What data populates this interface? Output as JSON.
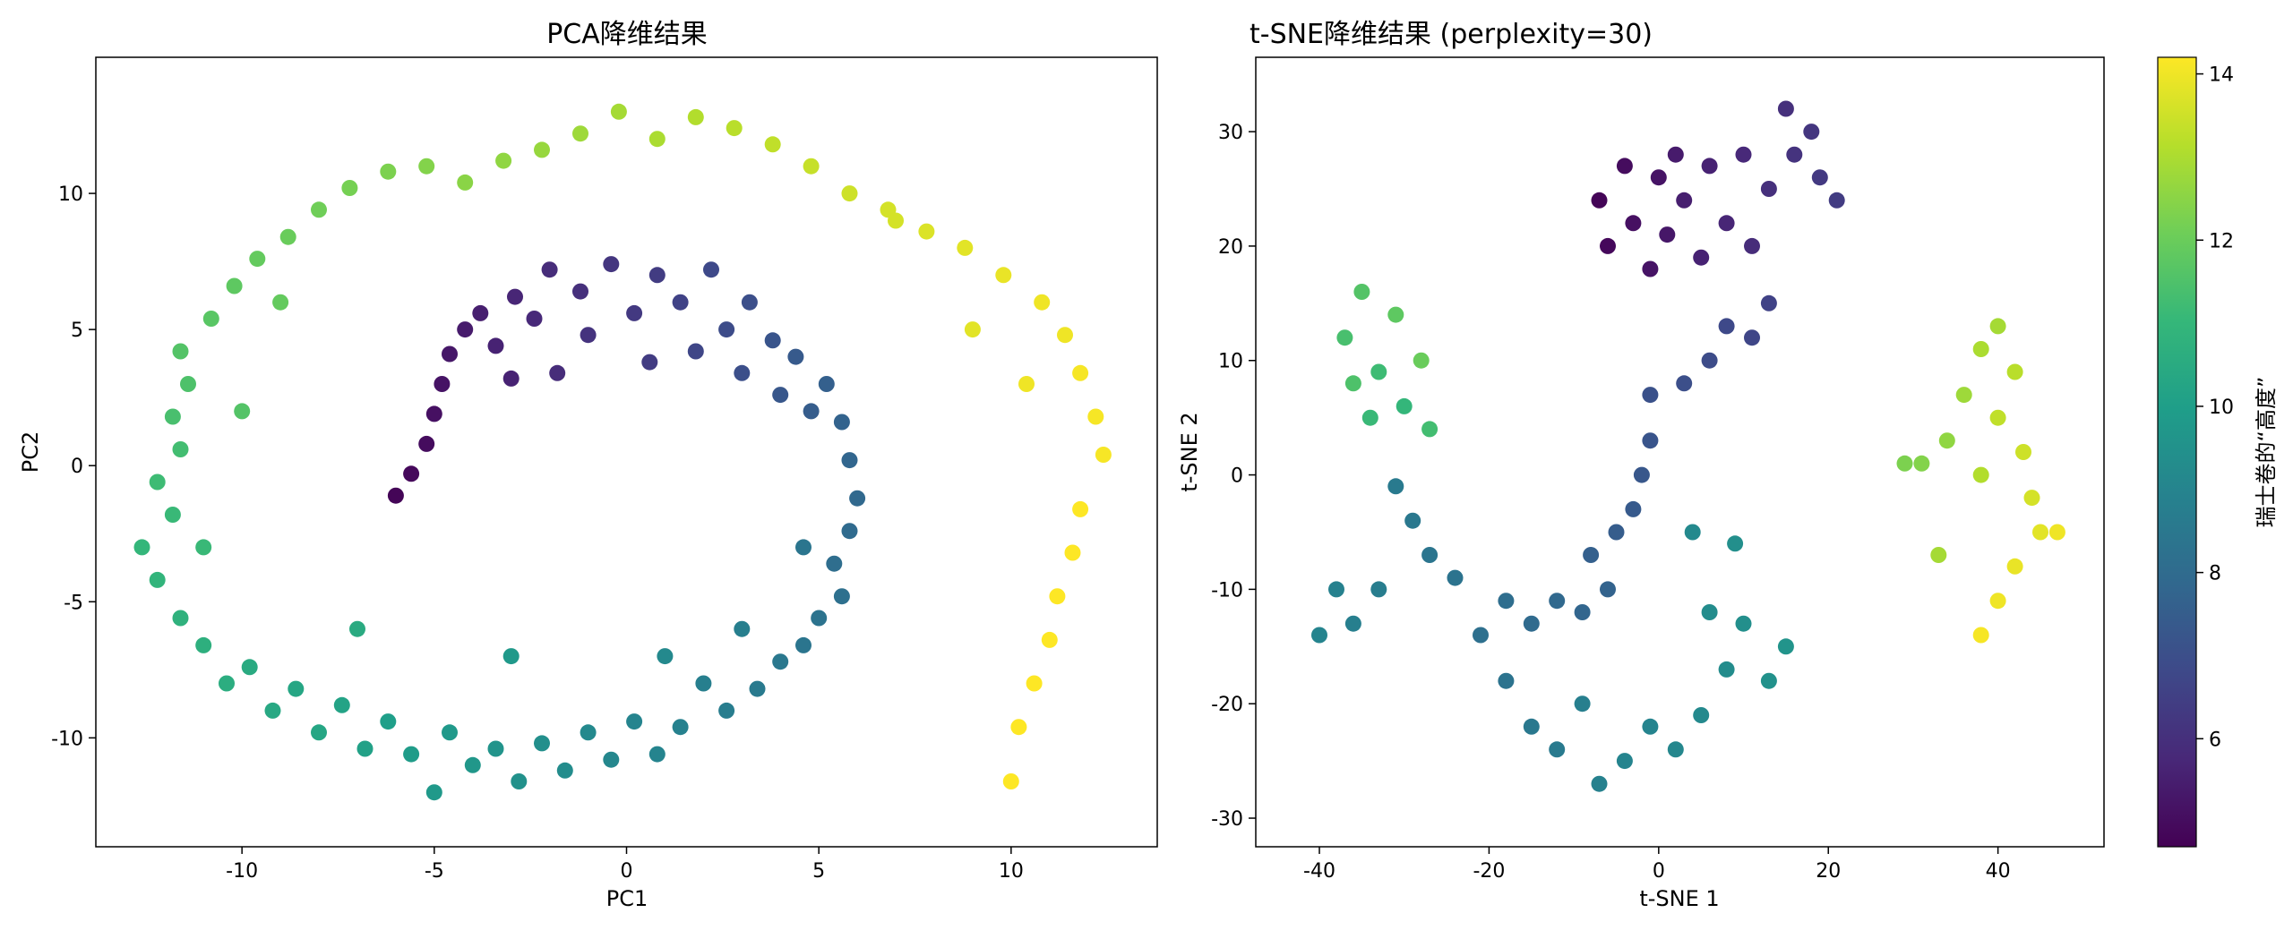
{
  "chart_data": [
    {
      "type": "scatter",
      "title": "PCA降维结果",
      "xlabel": "PC1",
      "ylabel": "PC2",
      "xlim": [
        -13.8,
        13.8
      ],
      "ylim": [
        -14.0,
        15.0
      ],
      "xticks": [
        -10,
        -5,
        0,
        5,
        10
      ],
      "yticks": [
        -10,
        -5,
        0,
        5,
        10
      ],
      "grid": false,
      "color_by": "height",
      "points": [
        [
          -6.0,
          -1.1,
          4.8
        ],
        [
          -5.6,
          -0.3,
          4.9
        ],
        [
          -5.2,
          0.8,
          5.0
        ],
        [
          -5.0,
          1.9,
          5.1
        ],
        [
          -4.8,
          3.0,
          5.2
        ],
        [
          -4.6,
          4.1,
          5.3
        ],
        [
          -4.2,
          5.0,
          5.4
        ],
        [
          -3.8,
          5.6,
          5.5
        ],
        [
          -3.4,
          4.4,
          5.6
        ],
        [
          -3.0,
          3.2,
          5.6
        ],
        [
          -2.9,
          6.2,
          5.7
        ],
        [
          -2.4,
          5.4,
          5.8
        ],
        [
          -2.0,
          7.2,
          5.9
        ],
        [
          -1.8,
          3.4,
          5.9
        ],
        [
          -1.2,
          6.4,
          6.0
        ],
        [
          -1.0,
          4.8,
          6.1
        ],
        [
          -0.4,
          7.4,
          6.2
        ],
        [
          0.2,
          5.6,
          6.3
        ],
        [
          0.6,
          3.8,
          6.4
        ],
        [
          0.8,
          7.0,
          6.4
        ],
        [
          1.4,
          6.0,
          6.6
        ],
        [
          1.8,
          4.2,
          6.7
        ],
        [
          2.2,
          7.2,
          6.8
        ],
        [
          2.6,
          5.0,
          6.9
        ],
        [
          3.0,
          3.4,
          7.0
        ],
        [
          3.2,
          6.0,
          7.0
        ],
        [
          3.8,
          4.6,
          7.2
        ],
        [
          4.0,
          2.6,
          7.3
        ],
        [
          4.4,
          4.0,
          7.4
        ],
        [
          4.8,
          2.0,
          7.5
        ],
        [
          5.2,
          3.0,
          7.6
        ],
        [
          5.6,
          1.6,
          7.7
        ],
        [
          5.8,
          0.2,
          7.8
        ],
        [
          6.0,
          -1.2,
          7.9
        ],
        [
          5.8,
          -2.4,
          8.0
        ],
        [
          5.4,
          -3.6,
          8.1
        ],
        [
          5.6,
          -4.8,
          8.2
        ],
        [
          5.0,
          -5.6,
          8.3
        ],
        [
          4.6,
          -6.6,
          8.4
        ],
        [
          4.0,
          -7.2,
          8.5
        ],
        [
          3.4,
          -8.2,
          8.6
        ],
        [
          2.6,
          -9.0,
          8.7
        ],
        [
          2.0,
          -8.0,
          8.8
        ],
        [
          1.4,
          -9.6,
          8.9
        ],
        [
          0.8,
          -10.6,
          9.0
        ],
        [
          0.2,
          -9.4,
          9.0
        ],
        [
          -0.4,
          -10.8,
          9.1
        ],
        [
          -1.0,
          -9.8,
          9.2
        ],
        [
          -1.6,
          -11.2,
          9.3
        ],
        [
          -2.2,
          -10.2,
          9.4
        ],
        [
          -2.8,
          -11.6,
          9.5
        ],
        [
          -3.4,
          -10.4,
          9.6
        ],
        [
          -4.0,
          -11.0,
          9.7
        ],
        [
          -4.6,
          -9.8,
          9.8
        ],
        [
          -5.0,
          -12.0,
          9.8
        ],
        [
          -5.6,
          -10.6,
          9.9
        ],
        [
          -6.2,
          -9.4,
          10.0
        ],
        [
          -6.8,
          -10.4,
          10.1
        ],
        [
          -7.4,
          -8.8,
          10.2
        ],
        [
          -8.0,
          -9.8,
          10.3
        ],
        [
          -8.6,
          -8.2,
          10.3
        ],
        [
          -9.2,
          -9.0,
          10.4
        ],
        [
          -9.8,
          -7.4,
          10.5
        ],
        [
          -10.4,
          -8.0,
          10.6
        ],
        [
          -11.0,
          -6.6,
          10.7
        ],
        [
          -11.6,
          -5.6,
          10.8
        ],
        [
          -12.2,
          -4.2,
          10.9
        ],
        [
          -12.6,
          -3.0,
          11.0
        ],
        [
          -11.8,
          -1.8,
          11.1
        ],
        [
          -12.2,
          -0.6,
          11.2
        ],
        [
          -11.6,
          0.6,
          11.3
        ],
        [
          -11.8,
          1.8,
          11.4
        ],
        [
          -11.4,
          3.0,
          11.5
        ],
        [
          -11.6,
          4.2,
          11.6
        ],
        [
          -10.8,
          5.4,
          11.7
        ],
        [
          -10.2,
          6.6,
          11.8
        ],
        [
          -9.6,
          7.6,
          11.9
        ],
        [
          -8.8,
          8.4,
          12.0
        ],
        [
          -8.0,
          9.4,
          12.1
        ],
        [
          -7.2,
          10.2,
          12.2
        ],
        [
          -6.2,
          10.8,
          12.3
        ],
        [
          -5.2,
          11.0,
          12.4
        ],
        [
          -4.2,
          10.4,
          12.5
        ],
        [
          -3.2,
          11.2,
          12.6
        ],
        [
          -2.2,
          11.6,
          12.7
        ],
        [
          -1.2,
          12.2,
          12.8
        ],
        [
          -0.2,
          13.0,
          12.9
        ],
        [
          0.8,
          12.0,
          13.0
        ],
        [
          1.8,
          12.8,
          13.1
        ],
        [
          2.8,
          12.4,
          13.2
        ],
        [
          3.8,
          11.8,
          13.3
        ],
        [
          4.8,
          11.0,
          13.4
        ],
        [
          5.8,
          10.0,
          13.5
        ],
        [
          6.8,
          9.4,
          13.6
        ],
        [
          7.8,
          8.6,
          13.7
        ],
        [
          8.8,
          8.0,
          13.8
        ],
        [
          9.8,
          7.0,
          13.9
        ],
        [
          10.8,
          6.0,
          14.0
        ],
        [
          11.4,
          4.8,
          14.0
        ],
        [
          11.8,
          3.4,
          14.1
        ],
        [
          12.2,
          1.8,
          14.1
        ],
        [
          12.4,
          0.4,
          14.1
        ],
        [
          11.8,
          -1.6,
          14.2
        ],
        [
          11.6,
          -3.2,
          14.2
        ],
        [
          11.2,
          -4.8,
          14.2
        ],
        [
          11.0,
          -6.4,
          14.2
        ],
        [
          10.6,
          -8.0,
          14.2
        ],
        [
          10.2,
          -9.6,
          14.2
        ],
        [
          10.0,
          -11.6,
          14.2
        ],
        [
          7.0,
          9.0,
          13.6
        ],
        [
          9.0,
          5.0,
          13.8
        ],
        [
          10.4,
          3.0,
          14.0
        ],
        [
          -9.0,
          6.0,
          11.9
        ],
        [
          -10.0,
          2.0,
          11.6
        ],
        [
          -11.0,
          -3.0,
          11.1
        ],
        [
          -7.0,
          -6.0,
          10.5
        ],
        [
          -3.0,
          -7.0,
          9.8
        ],
        [
          1.0,
          -7.0,
          9.2
        ],
        [
          3.0,
          -6.0,
          8.8
        ],
        [
          4.6,
          -3.0,
          8.4
        ]
      ]
    },
    {
      "type": "scatter",
      "title": "t-SNE降维结果 (perplexity=30)",
      "xlabel": "t-SNE 1",
      "ylabel": "t-SNE 2",
      "xlim": [
        -47.5,
        52.5
      ],
      "ylim": [
        -32.5,
        36.5
      ],
      "xticks": [
        -40,
        -20,
        0,
        20,
        40
      ],
      "yticks": [
        -30,
        -20,
        -10,
        0,
        10,
        20,
        30
      ],
      "grid": false,
      "color_by": "height",
      "points": [
        [
          -7.0,
          24.0,
          4.8
        ],
        [
          -6.0,
          20.0,
          4.9
        ],
        [
          -4.0,
          27.0,
          5.0
        ],
        [
          -3.0,
          22.0,
          5.1
        ],
        [
          -1.0,
          18.0,
          5.2
        ],
        [
          0.0,
          26.0,
          5.2
        ],
        [
          1.0,
          21.0,
          5.3
        ],
        [
          2.0,
          28.0,
          5.4
        ],
        [
          3.0,
          24.0,
          5.5
        ],
        [
          5.0,
          19.0,
          5.6
        ],
        [
          6.0,
          27.0,
          5.6
        ],
        [
          8.0,
          22.0,
          5.7
        ],
        [
          10.0,
          28.0,
          5.8
        ],
        [
          11.0,
          20.0,
          5.9
        ],
        [
          13.0,
          25.0,
          6.0
        ],
        [
          15.0,
          32.0,
          6.0
        ],
        [
          16.0,
          28.0,
          6.1
        ],
        [
          18.0,
          30.0,
          6.2
        ],
        [
          19.0,
          26.0,
          6.3
        ],
        [
          21.0,
          24.0,
          6.4
        ],
        [
          13.0,
          15.0,
          6.6
        ],
        [
          11.0,
          12.0,
          6.7
        ],
        [
          8.0,
          13.0,
          6.8
        ],
        [
          6.0,
          10.0,
          6.9
        ],
        [
          3.0,
          8.0,
          7.0
        ],
        [
          -1.0,
          7.0,
          7.1
        ],
        [
          -1.0,
          3.0,
          7.2
        ],
        [
          -2.0,
          0.0,
          7.3
        ],
        [
          -3.0,
          -3.0,
          7.4
        ],
        [
          -5.0,
          -5.0,
          7.5
        ],
        [
          -8.0,
          -7.0,
          7.6
        ],
        [
          -6.0,
          -10.0,
          7.7
        ],
        [
          -9.0,
          -12.0,
          7.8
        ],
        [
          -12.0,
          -11.0,
          7.9
        ],
        [
          -15.0,
          -13.0,
          8.0
        ],
        [
          -18.0,
          -11.0,
          8.1
        ],
        [
          -21.0,
          -14.0,
          8.2
        ],
        [
          -24.0,
          -9.0,
          8.3
        ],
        [
          -27.0,
          -7.0,
          8.4
        ],
        [
          -29.0,
          -4.0,
          8.5
        ],
        [
          -31.0,
          -1.0,
          8.6
        ],
        [
          -33.0,
          -10.0,
          8.7
        ],
        [
          -36.0,
          -13.0,
          8.8
        ],
        [
          -38.0,
          -10.0,
          8.9
        ],
        [
          -40.0,
          -14.0,
          9.0
        ],
        [
          -18.0,
          -18.0,
          8.3
        ],
        [
          -15.0,
          -22.0,
          8.5
        ],
        [
          -12.0,
          -24.0,
          8.6
        ],
        [
          -9.0,
          -20.0,
          8.8
        ],
        [
          -7.0,
          -27.0,
          8.9
        ],
        [
          -4.0,
          -25.0,
          9.0
        ],
        [
          -1.0,
          -22.0,
          9.0
        ],
        [
          2.0,
          -24.0,
          9.1
        ],
        [
          5.0,
          -21.0,
          9.2
        ],
        [
          8.0,
          -17.0,
          9.3
        ],
        [
          10.0,
          -13.0,
          9.4
        ],
        [
          13.0,
          -18.0,
          9.5
        ],
        [
          15.0,
          -15.0,
          9.6
        ],
        [
          6.0,
          -12.0,
          9.3
        ],
        [
          9.0,
          -6.0,
          9.4
        ],
        [
          4.0,
          -5.0,
          9.2
        ],
        [
          -30.0,
          6.0,
          11.0
        ],
        [
          -33.0,
          9.0,
          11.2
        ],
        [
          -37.0,
          12.0,
          11.4
        ],
        [
          -35.0,
          16.0,
          11.6
        ],
        [
          -31.0,
          14.0,
          11.8
        ],
        [
          -28.0,
          10.0,
          12.0
        ],
        [
          -34.0,
          5.0,
          11.1
        ],
        [
          -27.0,
          4.0,
          11.3
        ],
        [
          -36.0,
          8.0,
          11.5
        ],
        [
          31.0,
          1.0,
          12.4
        ],
        [
          34.0,
          3.0,
          12.6
        ],
        [
          36.0,
          7.0,
          12.8
        ],
        [
          38.0,
          11.0,
          13.0
        ],
        [
          40.0,
          13.0,
          12.9
        ],
        [
          42.0,
          9.0,
          13.2
        ],
        [
          40.0,
          5.0,
          13.3
        ],
        [
          43.0,
          2.0,
          13.5
        ],
        [
          38.0,
          0.0,
          13.1
        ],
        [
          44.0,
          -2.0,
          13.6
        ],
        [
          45.0,
          -5.0,
          13.8
        ],
        [
          42.0,
          -8.0,
          13.9
        ],
        [
          40.0,
          -11.0,
          14.0
        ],
        [
          38.0,
          -14.0,
          14.1
        ],
        [
          47.0,
          -5.0,
          14.0
        ],
        [
          33.0,
          -7.0,
          12.9
        ],
        [
          29.0,
          1.0,
          12.3
        ]
      ]
    }
  ],
  "colorbar": {
    "label": "瑞士卷的“高度”",
    "ticks": [
      6,
      8,
      10,
      12,
      14
    ],
    "range": [
      4.7,
      14.2
    ],
    "colormap": "viridis"
  }
}
